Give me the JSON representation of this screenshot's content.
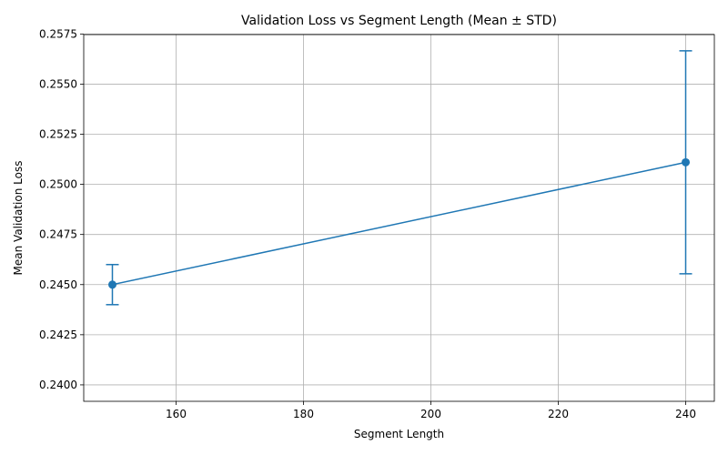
{
  "chart_data": {
    "type": "line",
    "title": "Validation Loss vs Segment Length (Mean ± STD)",
    "xlabel": "Segment Length",
    "ylabel": "Mean Validation Loss",
    "xlim": [
      145.5,
      244.5
    ],
    "ylim": [
      0.23918,
      0.25747
    ],
    "xticks": [
      160,
      180,
      200,
      220,
      240
    ],
    "xtick_labels": [
      "160",
      "180",
      "200",
      "220",
      "240"
    ],
    "yticks": [
      0.24,
      0.2425,
      0.245,
      0.2475,
      0.25,
      0.2525,
      0.255,
      0.2575
    ],
    "ytick_labels": [
      "0.2400",
      "0.2425",
      "0.2450",
      "0.2475",
      "0.2500",
      "0.2525",
      "0.2550",
      "0.2575"
    ],
    "grid": true,
    "series": [
      {
        "x": [
          150,
          240
        ],
        "y": [
          0.245,
          0.2511
        ],
        "yerr": [
          0.001,
          0.00556
        ],
        "color": "#1f77b4",
        "marker": "circle",
        "error_bars": true
      }
    ]
  }
}
